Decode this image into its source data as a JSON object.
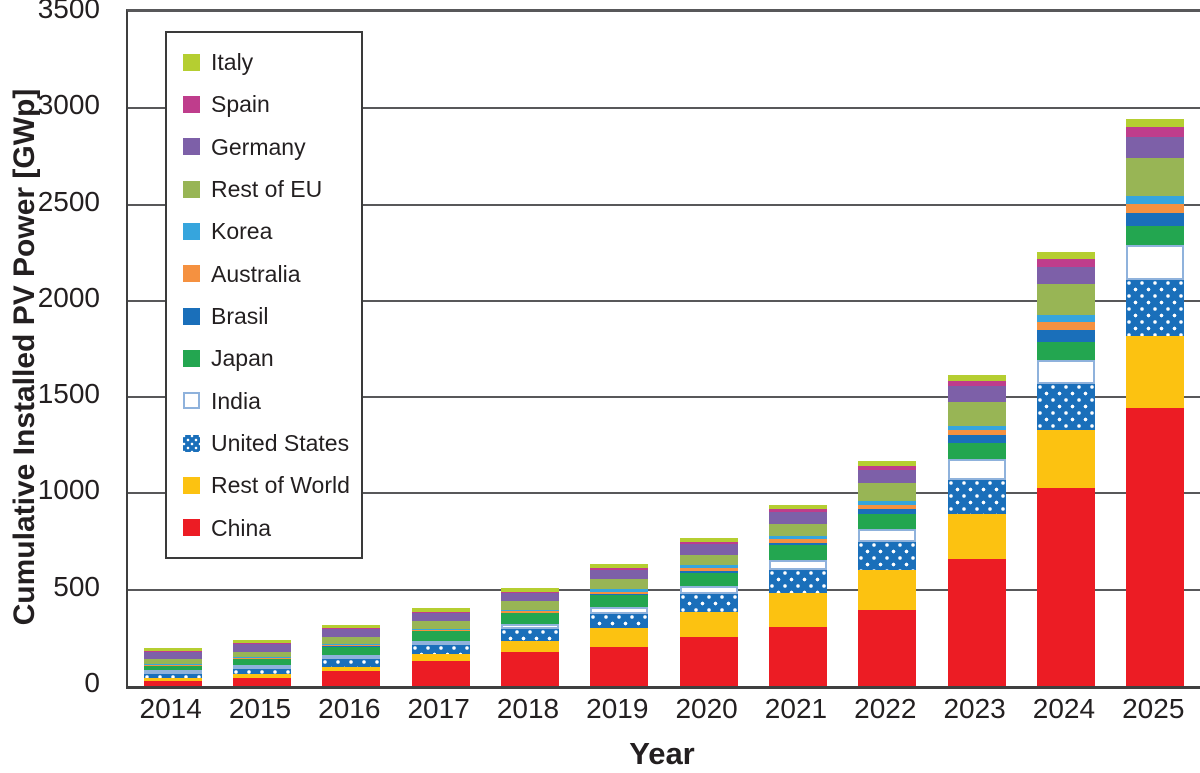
{
  "figure": {
    "y_axis_title": "Cumulative Installed PV Power [GWp]",
    "x_axis_title": "Year"
  },
  "colors": {
    "background": "#ffffff",
    "gridline": "#58585a",
    "axis_line": "#3f3f3f",
    "text": "#231f20"
  },
  "chart_data": {
    "type": "bar",
    "stacked": true,
    "title": "",
    "xlabel": "Year",
    "ylabel": "Cumulative Installed PV Power [GWp]",
    "ylim": [
      0,
      3500
    ],
    "y_tick_step": 500,
    "y_tick_labels": [
      "0",
      "500",
      "1000",
      "1500",
      "2000",
      "2500",
      "3000",
      "3500"
    ],
    "grid": true,
    "legend_position": "upper-left",
    "legend_order_top_to_bottom": [
      "Italy",
      "Spain",
      "Germany",
      "Rest of EU",
      "Korea",
      "Australia",
      "Brasil",
      "Japan",
      "India",
      "United States",
      "Rest of World",
      "China"
    ],
    "categories": [
      "2014",
      "2015",
      "2016",
      "2017",
      "2018",
      "2019",
      "2020",
      "2021",
      "2022",
      "2023",
      "2024",
      "2025"
    ],
    "series": [
      {
        "name": "China",
        "color": "#ec1c24",
        "pattern": "solid",
        "values": [
          28,
          44,
          78,
          131,
          175,
          204,
          253,
          306,
          395,
          660,
          1030,
          1445
        ]
      },
      {
        "name": "Rest of World",
        "color": "#fcc211",
        "pattern": "solid",
        "values": [
          15,
          17,
          22,
          33,
          57,
          95,
          132,
          175,
          210,
          235,
          300,
          375
        ]
      },
      {
        "name": "United States",
        "color": "#1a6fba",
        "pattern": "white-dots",
        "values": [
          18,
          26,
          41,
          51,
          62,
          76,
          94,
          121,
          141,
          177,
          240,
          290
        ]
      },
      {
        "name": "India",
        "color": "#ffffff",
        "pattern": "white-blue-border",
        "values": [
          3,
          5,
          9,
          18,
          27,
          35,
          39,
          55,
          68,
          105,
          125,
          180
        ]
      },
      {
        "name": "Japan",
        "color": "#23a650",
        "pattern": "solid",
        "values": [
          23,
          34,
          43,
          49,
          56,
          63,
          69,
          74,
          79,
          87,
          92,
          97
        ]
      },
      {
        "name": "Brasil",
        "color": "#1a6fba",
        "pattern": "solid",
        "values": [
          1,
          1,
          1,
          1,
          2,
          5,
          8,
          13,
          24,
          37,
          61,
          70
        ]
      },
      {
        "name": "Australia",
        "color": "#f59140",
        "pattern": "solid",
        "values": [
          4,
          5,
          6,
          7,
          9,
          13,
          18,
          19,
          21,
          26,
          43,
          45
        ]
      },
      {
        "name": "Korea",
        "color": "#36a5dd",
        "pattern": "solid",
        "values": [
          3,
          4,
          5,
          6,
          8,
          11,
          15,
          18,
          21,
          25,
          35,
          44
        ]
      },
      {
        "name": "Rest of EU",
        "color": "#98b555",
        "pattern": "solid",
        "values": [
          26,
          27,
          37,
          40,
          44,
          52,
          55,
          62,
          98,
          123,
          160,
          195
        ]
      },
      {
        "name": "Germany",
        "color": "#7d60a8",
        "pattern": "solid",
        "values": [
          38,
          39,
          41,
          42,
          45,
          49,
          54,
          60,
          67,
          82,
          92,
          110
        ]
      },
      {
        "name": "Spain",
        "color": "#bf3d8c",
        "pattern": "solid",
        "values": [
          5,
          5,
          5,
          6,
          6,
          9,
          10,
          14,
          19,
          28,
          40,
          52
        ]
      },
      {
        "name": "Italy",
        "color": "#b5ce31",
        "pattern": "solid",
        "values": [
          18,
          19,
          19,
          20,
          20,
          21,
          22,
          23,
          25,
          30,
          35,
          43
        ]
      }
    ],
    "totals": [
      182,
      226,
      307,
      404,
      511,
      633,
      769,
      940,
      1168,
      1615,
      2253,
      2946
    ]
  }
}
